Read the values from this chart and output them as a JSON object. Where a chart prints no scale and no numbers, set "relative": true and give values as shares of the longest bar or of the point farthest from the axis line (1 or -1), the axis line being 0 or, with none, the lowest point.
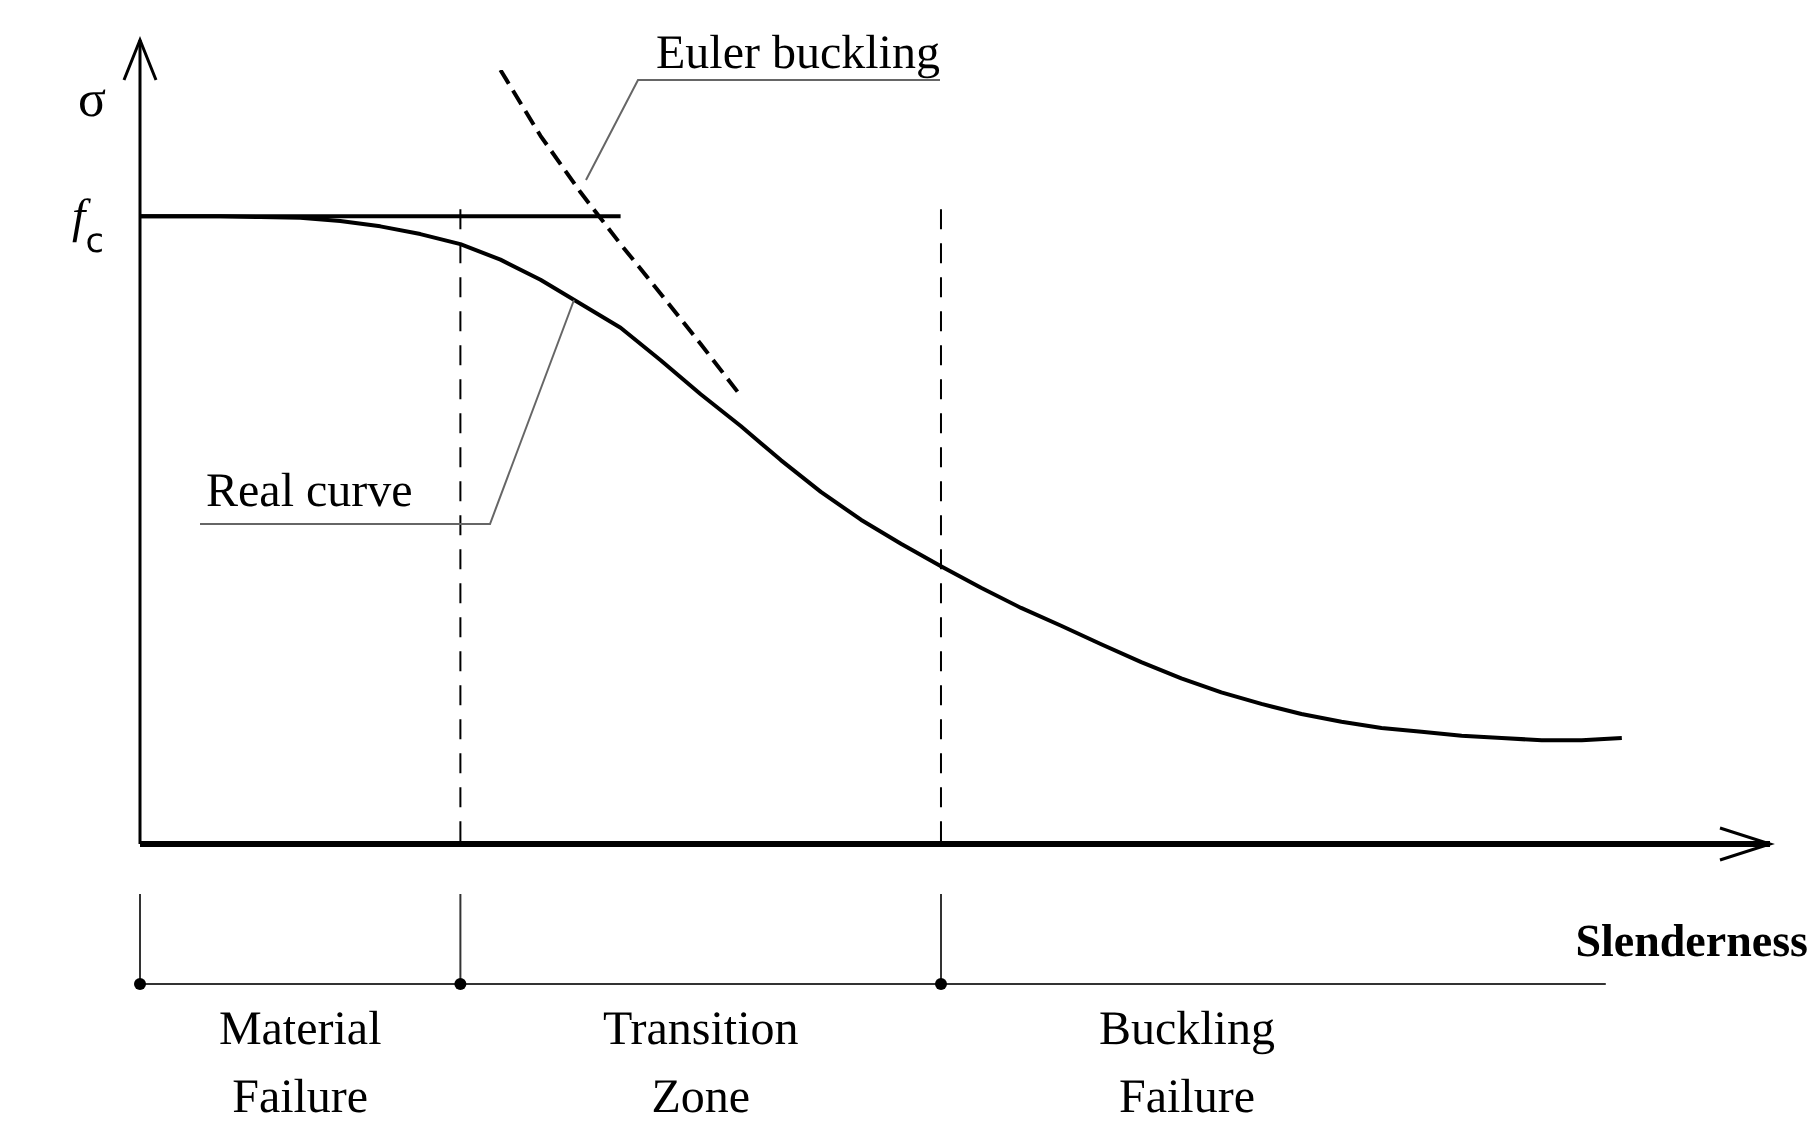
{
  "chart_data": {
    "type": "line",
    "relative": true,
    "ylabel": "σ",
    "xlabel": "Slenderness",
    "marker": "none",
    "legend": false,
    "categories": [
      null,
      null,
      null,
      null,
      null,
      null,
      null,
      null,
      null,
      null,
      null,
      null,
      null,
      null,
      null,
      null,
      null,
      null,
      null,
      null,
      null,
      null,
      null,
      null,
      null,
      null,
      null,
      null,
      null,
      null,
      null,
      null,
      null,
      null,
      null,
      null,
      null,
      null
    ],
    "series": [
      {
        "type": "line",
        "color": "#000000",
        "line_style": "solid",
        "values": [
          0.811,
          0.811,
          0.811,
          0.811,
          0.811,
          0.811,
          0.811,
          0.811,
          0.811,
          0.811,
          0.811,
          0.811,
          0.811,
          null,
          null,
          null,
          null,
          null,
          null,
          null,
          null,
          null,
          null,
          null,
          null,
          null,
          null,
          null,
          null,
          null,
          null,
          null,
          null,
          null,
          null,
          null,
          null,
          null
        ]
      },
      {
        "type": "line",
        "color": "#000000",
        "line_style": "dashed",
        "values": [
          null,
          null,
          null,
          null,
          null,
          null,
          null,
          null,
          null,
          1,
          0.915,
          0.842,
          0.775,
          0.711,
          0.646,
          0.579,
          null,
          null,
          null,
          null,
          null,
          null,
          null,
          null,
          null,
          null,
          null,
          null,
          null,
          null,
          null,
          null,
          null,
          null,
          null,
          null,
          null,
          null
        ]
      },
      {
        "type": "line",
        "color": "#000000",
        "line_style": "solid",
        "values": [
          0.811,
          0.811,
          0.811,
          0.81,
          0.809,
          0.805,
          0.798,
          0.788,
          0.775,
          0.755,
          0.729,
          0.698,
          0.667,
          0.625,
          0.581,
          0.54,
          0.496,
          0.455,
          0.419,
          0.388,
          0.359,
          0.331,
          0.305,
          0.282,
          0.258,
          0.235,
          0.214,
          0.196,
          0.181,
          0.168,
          0.158,
          0.15,
          0.145,
          0.14,
          0.137,
          0.134,
          0.134,
          0.137
        ]
      }
    ],
    "annotations": [
      "f$_{c}$",
      "Euler buckling",
      "Real curve",
      "Material Failure",
      "Transition Zone",
      "Buckling Failure"
    ]
  }
}
